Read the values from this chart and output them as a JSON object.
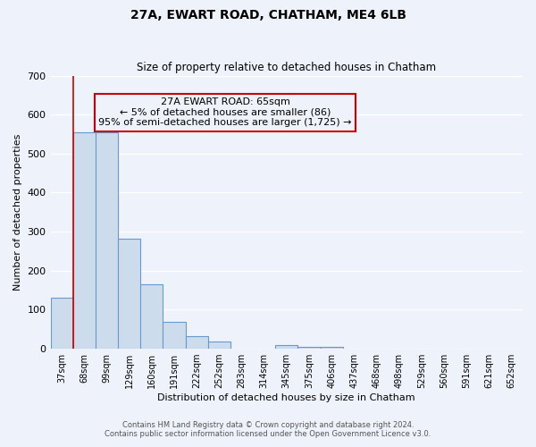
{
  "title": "27A, EWART ROAD, CHATHAM, ME4 6LB",
  "subtitle": "Size of property relative to detached houses in Chatham",
  "xlabel": "Distribution of detached houses by size in Chatham",
  "ylabel": "Number of detached properties",
  "footer_line1": "Contains HM Land Registry data © Crown copyright and database right 2024.",
  "footer_line2": "Contains public sector information licensed under the Open Government Licence v3.0.",
  "bin_labels": [
    "37sqm",
    "68sqm",
    "99sqm",
    "129sqm",
    "160sqm",
    "191sqm",
    "222sqm",
    "252sqm",
    "283sqm",
    "314sqm",
    "345sqm",
    "375sqm",
    "406sqm",
    "437sqm",
    "468sqm",
    "498sqm",
    "529sqm",
    "560sqm",
    "591sqm",
    "621sqm",
    "652sqm"
  ],
  "bar_values": [
    130,
    555,
    555,
    283,
    165,
    70,
    32,
    18,
    0,
    0,
    10,
    5,
    5,
    0,
    0,
    0,
    0,
    0,
    0,
    0,
    0
  ],
  "bar_color": "#cddcec",
  "bar_edge_color": "#6699cc",
  "annotation_text": "27A EWART ROAD: 65sqm\n← 5% of detached houses are smaller (86)\n95% of semi-detached houses are larger (1,725) →",
  "annotation_box_edge_color": "#cc0000",
  "red_line_color": "#cc0000",
  "red_line_x": 1,
  "ylim": [
    0,
    700
  ],
  "yticks": [
    0,
    100,
    200,
    300,
    400,
    500,
    600,
    700
  ],
  "background_color": "#eef2fa",
  "grid_color": "#ffffff",
  "title_fontsize": 10,
  "subtitle_fontsize": 8.5,
  "ylabel_fontsize": 8,
  "xlabel_fontsize": 8,
  "tick_fontsize": 7,
  "annotation_fontsize": 8,
  "footer_fontsize": 6
}
